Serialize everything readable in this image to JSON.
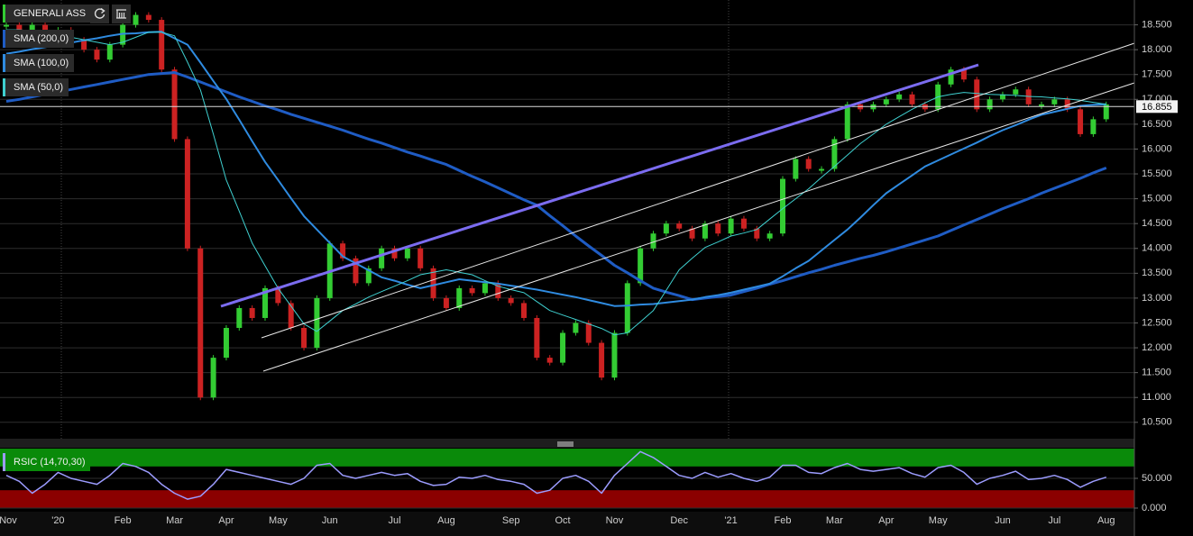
{
  "chart_data": [
    {
      "type": "candlestick",
      "categories": [
        "Nov",
        null,
        null,
        null,
        "'20",
        null,
        null,
        null,
        null,
        "Feb",
        null,
        null,
        null,
        "Mar",
        null,
        null,
        null,
        "Apr",
        null,
        null,
        null,
        "May",
        null,
        null,
        null,
        "Jun",
        null,
        null,
        null,
        null,
        "Jul",
        null,
        null,
        null,
        "Aug",
        null,
        null,
        null,
        null,
        "Sep",
        null,
        null,
        null,
        "Oct",
        null,
        null,
        null,
        "Nov",
        null,
        null,
        null,
        null,
        "Dec",
        null,
        null,
        null,
        "'21",
        null,
        null,
        null,
        "Feb",
        null,
        null,
        null,
        "Mar",
        null,
        null,
        null,
        "Apr",
        null,
        null,
        null,
        "May",
        null,
        null,
        null,
        null,
        "Jun",
        null,
        null,
        null,
        "Jul",
        null,
        null,
        null,
        "Aug"
      ],
      "series": [
        {
          "name": "GENERALI ASS",
          "up_color": "#33cc33",
          "down_color": "#cc2222",
          "values": [
            18.5,
            18.4,
            18.5,
            18.3,
            18.4,
            18.2,
            18.0,
            17.8,
            18.1,
            18.5,
            18.7,
            18.6,
            17.6,
            16.2,
            14.0,
            11.0,
            11.8,
            12.4,
            12.8,
            12.6,
            13.2,
            12.9,
            12.4,
            12.0,
            13.0,
            14.1,
            13.8,
            13.3,
            13.6,
            14.0,
            13.8,
            14.0,
            13.6,
            13.0,
            12.8,
            13.2,
            13.1,
            13.3,
            13.0,
            12.9,
            12.6,
            11.8,
            11.7,
            12.3,
            12.5,
            12.1,
            11.4,
            12.3,
            13.3,
            14.0,
            14.3,
            14.5,
            14.4,
            14.2,
            14.5,
            14.3,
            14.6,
            14.4,
            14.2,
            14.3,
            15.4,
            15.8,
            15.6,
            15.6,
            16.2,
            16.9,
            16.8,
            16.9,
            17.0,
            17.1,
            16.9,
            16.8,
            17.3,
            17.6,
            17.4,
            16.8,
            17.0,
            17.1,
            17.2,
            16.9,
            16.9,
            17.0,
            16.8,
            16.3,
            16.6,
            16.9
          ]
        },
        {
          "name": "SMA (200,0)",
          "color": "#1f5cc4",
          "values": [
            16.96,
            17.0,
            17.05,
            17.1,
            17.15,
            17.2,
            17.25,
            17.3,
            17.35,
            17.4,
            17.45,
            17.5,
            17.52,
            17.54,
            17.45,
            17.35,
            17.25,
            17.15,
            17.05,
            16.96,
            16.87,
            16.79,
            16.7,
            16.62,
            16.54,
            16.46,
            16.38,
            16.29,
            16.2,
            16.12,
            16.03,
            15.94,
            15.86,
            15.77,
            15.69,
            15.57,
            15.45,
            15.34,
            15.22,
            15.1,
            14.98,
            14.87,
            14.66,
            14.46,
            14.25,
            14.05,
            13.86,
            13.66,
            13.51,
            13.35,
            13.2,
            13.12,
            13.05,
            12.97,
            13.0,
            13.03,
            13.06,
            13.13,
            13.2,
            13.28,
            13.35,
            13.43,
            13.51,
            13.58,
            13.66,
            13.73,
            13.8,
            13.86,
            13.93,
            14.01,
            14.09,
            14.17,
            14.25,
            14.36,
            14.47,
            14.58,
            14.69,
            14.8,
            14.9,
            15.0,
            15.11,
            15.21,
            15.31,
            15.41,
            15.52,
            15.62
          ]
        },
        {
          "name": "SMA (100,0)",
          "color": "#2f8be0",
          "values": [
            17.92,
            17.96,
            18.01,
            18.05,
            18.1,
            18.14,
            18.19,
            18.23,
            18.28,
            18.32,
            18.33,
            18.35,
            18.36,
            18.23,
            18.1,
            17.74,
            17.37,
            17.01,
            16.59,
            16.16,
            15.74,
            15.38,
            15.01,
            14.65,
            14.38,
            14.11,
            13.84,
            13.7,
            13.56,
            13.42,
            13.35,
            13.27,
            13.2,
            13.26,
            13.32,
            13.38,
            13.35,
            13.32,
            13.29,
            13.25,
            13.21,
            13.17,
            13.12,
            13.07,
            13.02,
            12.96,
            12.9,
            12.84,
            12.85,
            12.87,
            12.88,
            12.91,
            12.94,
            12.97,
            13.02,
            13.06,
            13.11,
            13.17,
            13.23,
            13.29,
            13.44,
            13.6,
            13.75,
            13.96,
            14.17,
            14.38,
            14.62,
            14.87,
            15.11,
            15.29,
            15.47,
            15.65,
            15.77,
            15.89,
            16.01,
            16.13,
            16.26,
            16.38,
            16.48,
            16.59,
            16.69,
            16.75,
            16.81,
            16.87,
            16.89,
            16.9
          ]
        },
        {
          "name": "SMA (50,0)",
          "color": "#3fd0d0",
          "values": [
            18.4,
            18.4,
            18.38,
            18.35,
            18.3,
            18.25,
            18.2,
            18.15,
            18.1,
            18.15,
            18.25,
            18.35,
            18.35,
            18.28,
            17.75,
            17.19,
            16.3,
            15.38,
            14.75,
            14.11,
            13.65,
            13.2,
            12.84,
            12.48,
            12.33,
            12.54,
            12.75,
            12.88,
            13.02,
            13.13,
            13.24,
            13.35,
            13.47,
            13.52,
            13.57,
            13.52,
            13.47,
            13.35,
            13.24,
            13.17,
            13.11,
            12.93,
            12.75,
            12.66,
            12.57,
            12.48,
            12.39,
            12.26,
            12.3,
            12.52,
            12.75,
            13.16,
            13.57,
            13.8,
            14.02,
            14.13,
            14.25,
            14.31,
            14.38,
            14.59,
            14.8,
            15.0,
            15.2,
            15.43,
            15.65,
            15.88,
            16.11,
            16.3,
            16.5,
            16.65,
            16.8,
            16.93,
            17.05,
            17.1,
            17.14,
            17.12,
            17.1,
            17.09,
            17.08,
            17.06,
            17.05,
            17.03,
            17.01,
            16.98,
            16.94,
            16.9
          ]
        }
      ],
      "last_value": 16.855,
      "ylim": [
        10.17,
        19.0
      ],
      "yticks": [
        {
          "value": 10.5,
          "label": "10.500"
        },
        {
          "value": 11.0,
          "label": "11.000"
        },
        {
          "value": 11.5,
          "label": "11.500"
        },
        {
          "value": 12.0,
          "label": "12.000"
        },
        {
          "value": 12.5,
          "label": "12.500"
        },
        {
          "value": 13.0,
          "label": "13.000"
        },
        {
          "value": 13.5,
          "label": "13.500"
        },
        {
          "value": 14.0,
          "label": "14.000"
        },
        {
          "value": 14.5,
          "label": "14.500"
        },
        {
          "value": 15.0,
          "label": "15.000"
        },
        {
          "value": 15.5,
          "label": "15.500"
        },
        {
          "value": 16.0,
          "label": "16.000"
        },
        {
          "value": 16.5,
          "label": "16.500"
        },
        {
          "value": 17.0,
          "label": "17.000"
        },
        {
          "value": 17.5,
          "label": "17.500"
        },
        {
          "value": 18.0,
          "label": "18.000"
        },
        {
          "value": 18.5,
          "label": "18.500"
        }
      ],
      "grid": true
    },
    {
      "type": "line",
      "series": [
        {
          "name": "RSIC (14,70,30)",
          "color": "#9c9cff",
          "values": [
            55,
            45,
            25,
            40,
            60,
            50,
            45,
            40,
            55,
            75,
            70,
            60,
            40,
            25,
            15,
            20,
            40,
            65,
            60,
            55,
            50,
            45,
            40,
            50,
            72,
            75,
            55,
            50,
            55,
            60,
            55,
            58,
            45,
            38,
            40,
            52,
            50,
            55,
            48,
            45,
            40,
            25,
            30,
            50,
            55,
            45,
            25,
            55,
            75,
            95,
            85,
            70,
            55,
            50,
            60,
            52,
            58,
            50,
            45,
            52,
            72,
            72,
            60,
            58,
            68,
            75,
            65,
            62,
            65,
            68,
            58,
            52,
            68,
            72,
            60,
            40,
            50,
            55,
            62,
            48,
            50,
            55,
            48,
            35,
            45,
            52
          ]
        }
      ],
      "bands": [
        {
          "from": 70,
          "to": 100,
          "color": "#0a8a0a"
        },
        {
          "from": 0,
          "to": 30,
          "color": "#8b0000"
        }
      ],
      "ylim": [
        0,
        100
      ],
      "yticks": [
        {
          "value": 0,
          "label": "0.000"
        },
        {
          "value": 50,
          "label": "50.000"
        }
      ],
      "grid": true
    }
  ]
}
